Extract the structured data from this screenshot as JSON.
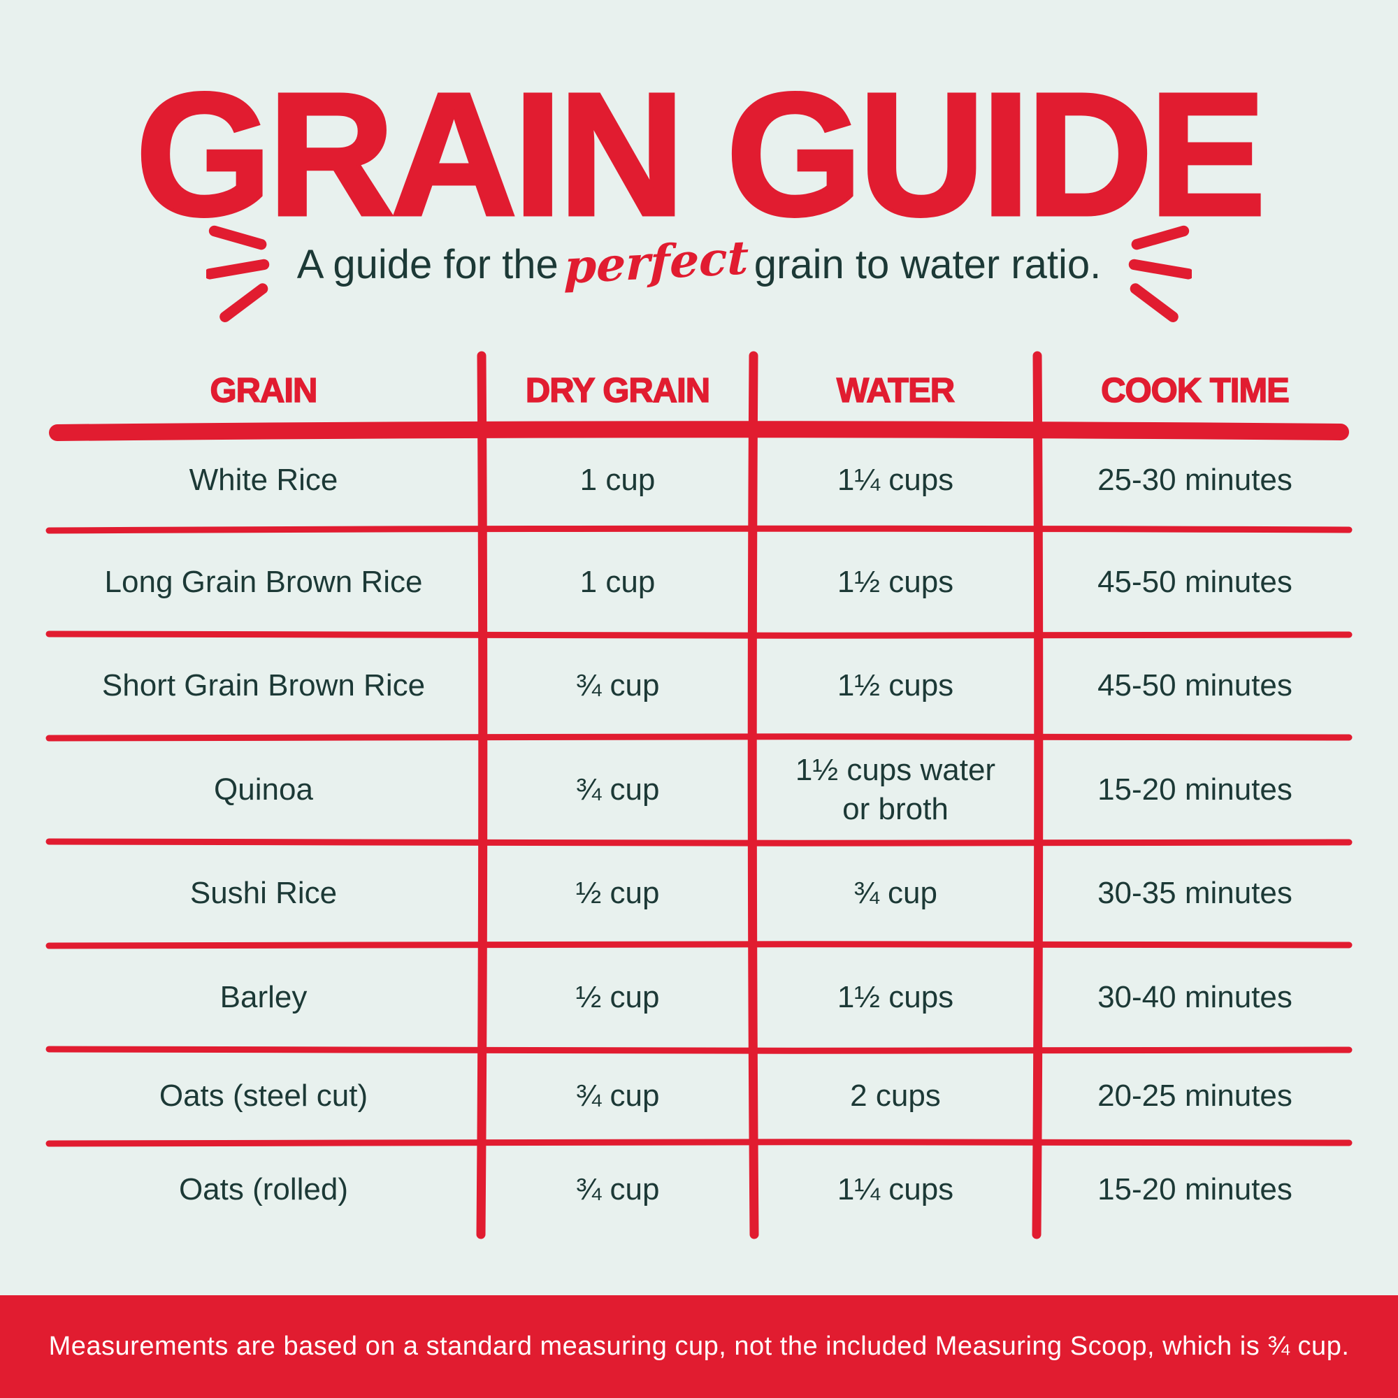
{
  "page": {
    "title": "GRAIN GUIDE",
    "subtitle": {
      "prefix": "A guide for the",
      "highlight": "perfect",
      "suffix": "grain to water ratio."
    }
  },
  "decorations": {
    "left_icon": "emphasis-dashes-left",
    "right_icon": "emphasis-dashes-right"
  },
  "table": {
    "columns": [
      "GRAIN",
      "DRY GRAIN",
      "WATER",
      "COOK TIME"
    ],
    "rows": [
      {
        "grain": "White Rice",
        "dry_grain": "1 cup",
        "water": "1¼ cups",
        "cook_time": "25-30 minutes"
      },
      {
        "grain": "Long Grain Brown Rice",
        "dry_grain": "1 cup",
        "water": "1½ cups",
        "cook_time": "45-50 minutes"
      },
      {
        "grain": "Short Grain Brown Rice",
        "dry_grain": "¾ cup",
        "water": "1½ cups",
        "cook_time": "45-50 minutes"
      },
      {
        "grain": "Quinoa",
        "dry_grain": "¾ cup",
        "water": "1½ cups water\nor broth",
        "cook_time": "15-20 minutes"
      },
      {
        "grain": "Sushi Rice",
        "dry_grain": "½ cup",
        "water": "¾ cup",
        "cook_time": "30-35 minutes"
      },
      {
        "grain": "Barley",
        "dry_grain": "½ cup",
        "water": "1½ cups",
        "cook_time": "30-40 minutes"
      },
      {
        "grain": "Oats (steel cut)",
        "dry_grain": "¾ cup",
        "water": "2 cups",
        "cook_time": "20-25 minutes"
      },
      {
        "grain": "Oats (rolled)",
        "dry_grain": "¾ cup",
        "water": "1¼ cups",
        "cook_time": "15-20 minutes"
      }
    ]
  },
  "footer": {
    "note": "Measurements are based on a standard measuring cup, not the included Measuring Scoop, which is ¾ cup."
  },
  "colors": {
    "red": "#E11C30",
    "background": "#E8F1EE",
    "text_dark": "#1C3936",
    "footer_text": "#FFFFFF"
  }
}
